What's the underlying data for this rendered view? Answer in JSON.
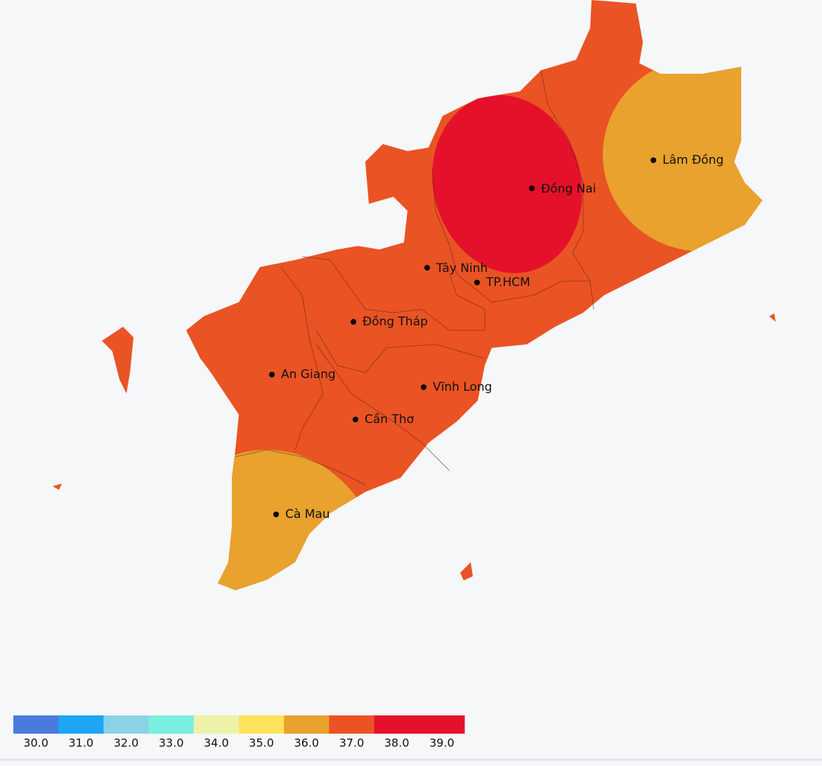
{
  "cities": [
    "Lâm Đồng",
    "Đồng Nai",
    "Tây Ninh",
    "TP.HCM",
    "Đồng Tháp",
    "An Giang",
    "Vĩnh Long",
    "Cần Thơ",
    "Cà Mau"
  ],
  "legend": {
    "items": [
      {
        "color": "#4a7bdc",
        "label": "30.0"
      },
      {
        "color": "#1ca6f4",
        "label": "31.0"
      },
      {
        "color": "#8bd2e6",
        "label": "32.0"
      },
      {
        "color": "#7ceedd",
        "label": "33.0"
      },
      {
        "color": "#eef2a8",
        "label": "34.0"
      },
      {
        "color": "#fde35a",
        "label": "35.0"
      },
      {
        "color": "#e8a22d",
        "label": "36.0"
      },
      {
        "color": "#ea5324",
        "label": "37.0"
      },
      {
        "color": "#e5112a",
        "label": "38.0"
      },
      {
        "color": "#e5112a",
        "label": "39.0"
      }
    ]
  }
}
